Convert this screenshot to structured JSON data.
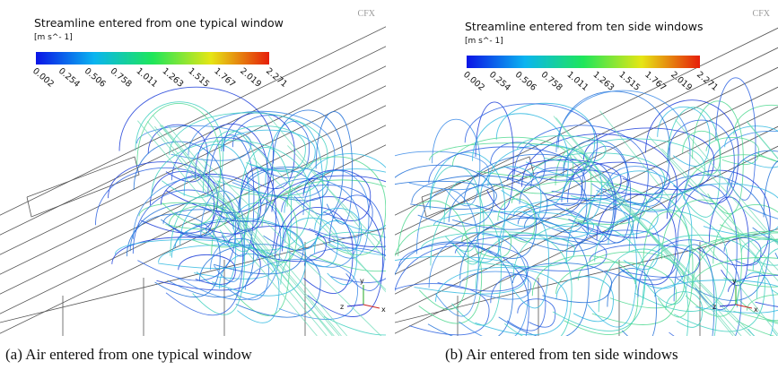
{
  "panels": [
    {
      "title": "Streamline entered from one typical window",
      "unit": "[m  s^- 1]",
      "colorbar_ticks": [
        "0.002",
        "0.254",
        "0.506",
        "0.758",
        "1.011",
        "1.263",
        "1.515",
        "1.767",
        "2.019",
        "2.271"
      ],
      "logo": "CFX",
      "axes": [
        "y",
        "z",
        "x"
      ],
      "caption": "(a) Air entered from one typical window"
    },
    {
      "title": "Streamline entered from ten side windows",
      "unit": "[m s^- 1]",
      "colorbar_ticks": [
        "0.002",
        "0.254",
        "0.506",
        "0.758",
        "1.011",
        "1.263",
        "1.515",
        "1.767",
        "2.019",
        "2.271"
      ],
      "logo": "CFX",
      "axes": [
        "y",
        "z",
        "x"
      ],
      "caption": "(b) Air entered from ten side windows"
    }
  ]
}
